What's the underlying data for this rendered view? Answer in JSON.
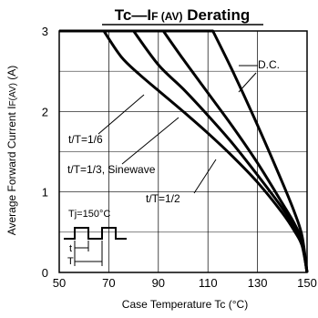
{
  "chart_data": {
    "type": "line",
    "title": "Tc—I",
    "title_sub": "F (AV)",
    "title_tail": " Derating",
    "xlabel": "Case Temperature  Tc (°C)",
    "ylabel": "Average Forward Current  I",
    "ylabel_sub": "F(AV)",
    "ylabel_unit": " (A)",
    "xlim": [
      50,
      150
    ],
    "ylim": [
      0,
      3
    ],
    "xticks": [
      50,
      70,
      90,
      110,
      130,
      150
    ],
    "yticks": [
      0,
      1,
      2,
      3
    ],
    "xtick_labels": [
      "50",
      "70",
      "90",
      "110",
      "130",
      "150"
    ],
    "ytick_labels": [
      "0",
      "1",
      "2",
      "3"
    ],
    "grid": true,
    "series": [
      {
        "name": "t/T=1/6",
        "x": [
          50,
          68,
          75,
          82,
          90,
          100,
          110,
          120,
          130,
          140,
          145,
          148,
          150
        ],
        "y": [
          3.0,
          3.0,
          2.68,
          2.47,
          2.26,
          2.0,
          1.73,
          1.44,
          1.12,
          0.74,
          0.51,
          0.33,
          0.0
        ]
      },
      {
        "name": "t/T=1/3, Sinewave",
        "x": [
          50,
          80,
          90,
          100,
          110,
          120,
          130,
          140,
          145,
          148,
          150
        ],
        "y": [
          3.0,
          3.0,
          2.58,
          2.28,
          1.95,
          1.6,
          1.21,
          0.8,
          0.56,
          0.36,
          0.0
        ]
      },
      {
        "name": "t/T=1/2",
        "x": [
          50,
          92,
          100,
          110,
          120,
          130,
          140,
          145,
          148,
          150
        ],
        "y": [
          3.0,
          3.0,
          2.65,
          2.23,
          1.81,
          1.36,
          0.86,
          0.6,
          0.38,
          0.0
        ]
      },
      {
        "name": "D.C.",
        "x": [
          50,
          112,
          120,
          130,
          140,
          145,
          148,
          150
        ],
        "y": [
          3.0,
          3.0,
          2.5,
          1.83,
          1.12,
          0.74,
          0.45,
          0.0
        ]
      }
    ],
    "annotations": {
      "dc": "D.C.",
      "t16": "t/T=1/6",
      "t13": "t/T=1/3, Sinewave",
      "t12": "t/T=1/2"
    },
    "inset": {
      "tj": "Tj=150°C",
      "t": "t",
      "T": "T"
    }
  }
}
